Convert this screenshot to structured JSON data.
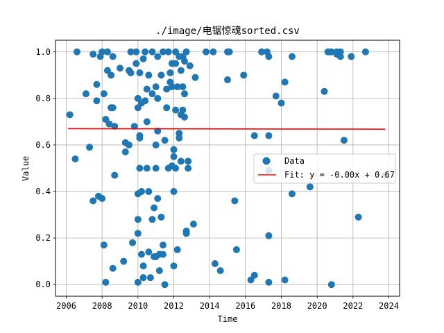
{
  "chart_data": {
    "type": "scatter",
    "title": "./image/电锯惊魂sorted.csv",
    "xlabel": "Time",
    "ylabel": "Value",
    "xlim": [
      2005.4,
      2024.6
    ],
    "ylim": [
      -0.05,
      1.05
    ],
    "xticks": [
      2006,
      2008,
      2010,
      2012,
      2014,
      2016,
      2018,
      2020,
      2022,
      2024
    ],
    "xtick_labels": [
      "2006",
      "2008",
      "2010",
      "2012",
      "2014",
      "2016",
      "2018",
      "2020",
      "2022",
      "2024"
    ],
    "yticks": [
      0.0,
      0.2,
      0.4,
      0.6,
      0.8,
      1.0
    ],
    "ytick_labels": [
      "0.0",
      "0.2",
      "0.4",
      "0.6",
      "0.8",
      "1.0"
    ],
    "grid": true,
    "legend_position": "center-right",
    "colors": {
      "data": "#1f77b4",
      "fit": "#ff0000"
    },
    "series": [
      {
        "name": "Data",
        "kind": "scatter",
        "points": [
          [
            2006.2,
            0.73
          ],
          [
            2006.5,
            0.54
          ],
          [
            2006.6,
            1.0
          ],
          [
            2007.1,
            0.82
          ],
          [
            2007.3,
            0.59
          ],
          [
            2007.5,
            0.99
          ],
          [
            2007.5,
            0.36
          ],
          [
            2007.7,
            0.86
          ],
          [
            2007.7,
            0.79
          ],
          [
            2007.8,
            0.38
          ],
          [
            2007.9,
            0.98
          ],
          [
            2008.0,
            1.0
          ],
          [
            2008.0,
            0.37
          ],
          [
            2008.1,
            0.82
          ],
          [
            2008.1,
            0.17
          ],
          [
            2008.2,
            0.71
          ],
          [
            2008.2,
            0.01
          ],
          [
            2008.3,
            0.92
          ],
          [
            2008.3,
            1.0
          ],
          [
            2008.4,
            0.69
          ],
          [
            2008.5,
            0.9
          ],
          [
            2008.5,
            0.76
          ],
          [
            2008.6,
            0.76
          ],
          [
            2008.6,
            0.07
          ],
          [
            2008.6,
            0.98
          ],
          [
            2008.7,
            0.68
          ],
          [
            2008.7,
            0.47
          ],
          [
            2009.0,
            0.93
          ],
          [
            2009.2,
            0.1
          ],
          [
            2009.3,
            0.57
          ],
          [
            2009.3,
            0.61
          ],
          [
            2009.5,
            0.92
          ],
          [
            2009.5,
            0.6
          ],
          [
            2009.6,
            0.91
          ],
          [
            2009.6,
            1.0
          ],
          [
            2009.7,
            0.18
          ],
          [
            2009.8,
            0.68
          ],
          [
            2009.9,
            0.95
          ],
          [
            2009.9,
            1.0
          ],
          [
            2010.0,
            0.8
          ],
          [
            2010.0,
            0.76
          ],
          [
            2010.0,
            0.39
          ],
          [
            2010.0,
            0.28
          ],
          [
            2010.0,
            0.22
          ],
          [
            2010.0,
            0.01
          ],
          [
            2010.1,
            0.91
          ],
          [
            2010.1,
            0.5
          ],
          [
            2010.1,
            0.64
          ],
          [
            2010.1,
            0.63
          ],
          [
            2010.2,
            0.78
          ],
          [
            2010.2,
            0.4
          ],
          [
            2010.2,
            0.13
          ],
          [
            2010.3,
            0.97
          ],
          [
            2010.3,
            0.08
          ],
          [
            2010.3,
            0.03
          ],
          [
            2010.4,
            1.0
          ],
          [
            2010.4,
            0.79
          ],
          [
            2010.5,
            0.84
          ],
          [
            2010.5,
            0.7
          ],
          [
            2010.5,
            0.5
          ],
          [
            2010.6,
            0.14
          ],
          [
            2010.6,
            0.4
          ],
          [
            2010.6,
            0.9
          ],
          [
            2010.7,
            0.03
          ],
          [
            2010.8,
            1.0
          ],
          [
            2010.8,
            0.82
          ],
          [
            2010.8,
            0.28
          ],
          [
            2010.9,
            0.33
          ],
          [
            2010.9,
            0.12
          ],
          [
            2011.0,
            0.85
          ],
          [
            2011.0,
            0.6
          ],
          [
            2011.0,
            0.5
          ],
          [
            2011.0,
            0.12
          ],
          [
            2011.1,
            0.98
          ],
          [
            2011.1,
            0.8
          ],
          [
            2011.1,
            0.66
          ],
          [
            2011.1,
            0.37
          ],
          [
            2011.2,
            0.06
          ],
          [
            2011.2,
            0.13
          ],
          [
            2011.3,
            0.9
          ],
          [
            2011.3,
            0.29
          ],
          [
            2011.4,
            1.0
          ],
          [
            2011.4,
            0.17
          ],
          [
            2011.4,
            0.13
          ],
          [
            2011.5,
            0.62
          ],
          [
            2011.5,
            0.0
          ],
          [
            2011.6,
            0.84
          ],
          [
            2011.6,
            0.76
          ],
          [
            2011.7,
            1.0
          ],
          [
            2011.7,
            0.5
          ],
          [
            2011.8,
            0.91
          ],
          [
            2011.8,
            0.87
          ],
          [
            2011.9,
            0.95
          ],
          [
            2011.9,
            0.85
          ],
          [
            2011.9,
            0.51
          ],
          [
            2012.0,
            0.4
          ],
          [
            2012.0,
            0.08
          ],
          [
            2012.0,
            0.58
          ],
          [
            2012.0,
            0.55
          ],
          [
            2012.1,
            1.0
          ],
          [
            2012.1,
            0.75
          ],
          [
            2012.1,
            0.95
          ],
          [
            2012.1,
            0.5
          ],
          [
            2012.2,
            0.85
          ],
          [
            2012.2,
            0.15
          ],
          [
            2012.3,
            0.98
          ],
          [
            2012.3,
            0.65
          ],
          [
            2012.3,
            0.63
          ],
          [
            2012.4,
            0.92
          ],
          [
            2012.4,
            0.73
          ],
          [
            2012.4,
            0.53
          ],
          [
            2012.5,
            0.85
          ],
          [
            2012.5,
            0.75
          ],
          [
            2012.5,
            0.98
          ],
          [
            2012.6,
            0.96
          ],
          [
            2012.6,
            0.82
          ],
          [
            2012.6,
            0.72
          ],
          [
            2012.7,
            0.22
          ],
          [
            2012.7,
            0.23
          ],
          [
            2012.7,
            1.0
          ],
          [
            2012.8,
            0.5
          ],
          [
            2012.8,
            0.53
          ],
          [
            2012.9,
            0.94
          ],
          [
            2013.1,
            0.26
          ],
          [
            2013.2,
            0.89
          ],
          [
            2013.8,
            1.0
          ],
          [
            2014.2,
            1.0
          ],
          [
            2014.3,
            0.09
          ],
          [
            2014.6,
            0.06
          ],
          [
            2015.0,
            0.88
          ],
          [
            2015.0,
            1.0
          ],
          [
            2015.1,
            1.0
          ],
          [
            2015.4,
            0.36
          ],
          [
            2015.5,
            0.15
          ],
          [
            2015.9,
            0.9
          ],
          [
            2016.3,
            0.02
          ],
          [
            2016.5,
            0.64
          ],
          [
            2016.5,
            0.04
          ],
          [
            2016.9,
            1.0
          ],
          [
            2017.2,
            1.0
          ],
          [
            2017.3,
            0.98
          ],
          [
            2017.3,
            0.64
          ],
          [
            2017.3,
            0.49
          ],
          [
            2017.3,
            0.21
          ],
          [
            2017.3,
            0.01
          ],
          [
            2017.7,
            0.81
          ],
          [
            2018.0,
            0.78
          ],
          [
            2018.2,
            0.87
          ],
          [
            2018.2,
            0.02
          ],
          [
            2018.6,
            0.98
          ],
          [
            2018.6,
            0.39
          ],
          [
            2019.6,
            0.42
          ],
          [
            2020.4,
            0.83
          ],
          [
            2020.6,
            1.0
          ],
          [
            2020.7,
            1.0
          ],
          [
            2020.8,
            1.0
          ],
          [
            2020.8,
            0.0
          ],
          [
            2021.1,
            1.0
          ],
          [
            2021.1,
            0.99
          ],
          [
            2021.3,
            1.0
          ],
          [
            2021.3,
            0.98
          ],
          [
            2021.5,
            0.62
          ],
          [
            2021.9,
            0.98
          ],
          [
            2022.3,
            0.29
          ],
          [
            2022.7,
            1.0
          ],
          [
            2023.8,
            0.47
          ]
        ]
      },
      {
        "name": "Fit: y = -0.00x + 0.67",
        "kind": "line",
        "points": [
          [
            2006.1,
            0.67
          ],
          [
            2023.8,
            0.668
          ]
        ]
      }
    ]
  }
}
